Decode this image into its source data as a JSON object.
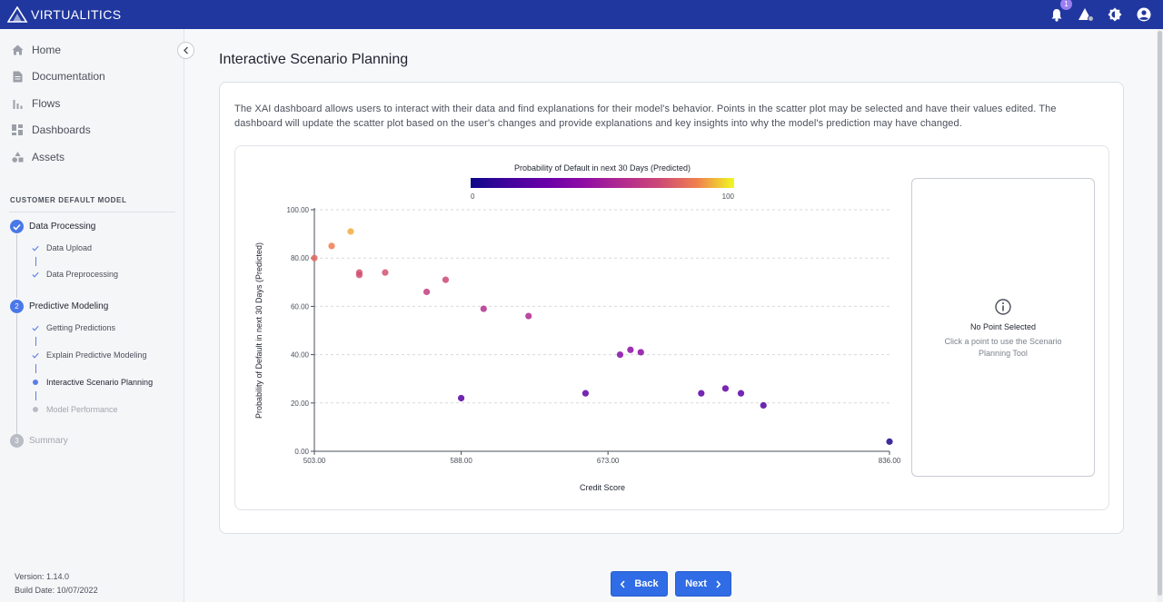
{
  "app": {
    "brand": "VIRTUALITICS",
    "notification_count": "1",
    "colors": {
      "topbar": "#20379f",
      "accent": "#2f6ce5",
      "step": "#4a78e8"
    }
  },
  "sidebar": {
    "nav": [
      {
        "label": "Home",
        "icon": "home-icon"
      },
      {
        "label": "Documentation",
        "icon": "document-icon"
      },
      {
        "label": "Flows",
        "icon": "bar-chart-icon"
      },
      {
        "label": "Dashboards",
        "icon": "dashboard-icon"
      },
      {
        "label": "Assets",
        "icon": "shapes-icon"
      }
    ],
    "section_title": "CUSTOMER DEFAULT MODEL",
    "steps": [
      {
        "label": "Data Processing",
        "marker": "✓",
        "status": "complete"
      },
      {
        "label": "Predictive Modeling",
        "marker": "2",
        "status": "active"
      },
      {
        "label": "Summary",
        "marker": "3",
        "status": "inactive"
      }
    ],
    "substeps": {
      "data_processing": [
        "Data Upload",
        "Data Preprocessing"
      ],
      "predictive_modeling": [
        "Getting Predictions",
        "Explain Predictive Modeling",
        "Interactive Scenario Planning",
        "Model Performance"
      ]
    },
    "version": "Version: 1.14.0",
    "build_date": "Build Date: 10/07/2022"
  },
  "main": {
    "title": "Interactive Scenario Planning",
    "description": "The XAI dashboard allows users to interact with their data and find explanations for their model's behavior. Points in the scatter plot may be selected and have their values edited. The dashboard will update the scatter plot based on the user's changes and provide explanations and key insights into why the model's prediction may have changed."
  },
  "side_panel": {
    "title": "No Point Selected",
    "text": "Click a point to use the Scenario Planning Tool"
  },
  "buttons": {
    "back": "Back",
    "next": "Next"
  },
  "chart_data": {
    "type": "scatter",
    "title": "Probability of Default in next 30 Days (Predicted)",
    "xlabel": "Credit Score",
    "ylabel": "Probability of Default in next 30 Days (Predicted)",
    "xlim": [
      503,
      836
    ],
    "ylim": [
      0,
      100
    ],
    "x_ticks": [
      "503.00",
      "588.00",
      "673.00",
      "836.00"
    ],
    "y_ticks": [
      "0.00",
      "20.00",
      "40.00",
      "60.00",
      "80.00",
      "100.00"
    ],
    "colorbar": {
      "min_label": "0",
      "max_label": "100",
      "colorscale": "plasma"
    },
    "grid": true,
    "points": [
      {
        "x": 503,
        "y": 80
      },
      {
        "x": 513,
        "y": 85
      },
      {
        "x": 524,
        "y": 91
      },
      {
        "x": 529,
        "y": 74
      },
      {
        "x": 529,
        "y": 73
      },
      {
        "x": 544,
        "y": 74
      },
      {
        "x": 568,
        "y": 66
      },
      {
        "x": 579,
        "y": 71
      },
      {
        "x": 588,
        "y": 22
      },
      {
        "x": 601,
        "y": 59
      },
      {
        "x": 627,
        "y": 56
      },
      {
        "x": 660,
        "y": 24
      },
      {
        "x": 680,
        "y": 40
      },
      {
        "x": 686,
        "y": 42
      },
      {
        "x": 692,
        "y": 41
      },
      {
        "x": 727,
        "y": 24
      },
      {
        "x": 741,
        "y": 26
      },
      {
        "x": 750,
        "y": 24
      },
      {
        "x": 763,
        "y": 19
      },
      {
        "x": 836,
        "y": 4
      }
    ]
  }
}
